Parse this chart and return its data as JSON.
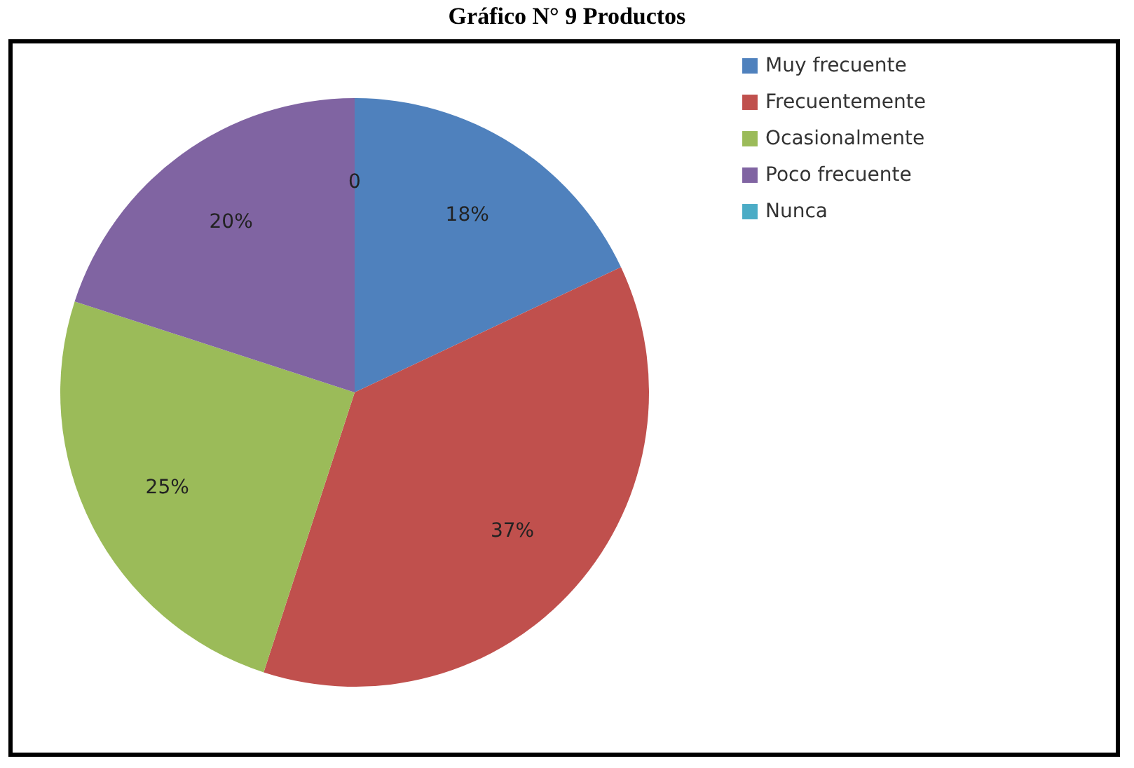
{
  "chart_data": {
    "type": "pie",
    "title": "Gráfico N° 9 Productos",
    "categories": [
      "Muy frecuente",
      "Frecuentemente",
      "Ocasionalmente",
      "Poco frecuente",
      "Nunca"
    ],
    "values": [
      18,
      37,
      25,
      20,
      0
    ],
    "colors": [
      "#4f81bd",
      "#c0504d",
      "#9bbb59",
      "#8064a2",
      "#4bacc6"
    ],
    "value_labels": [
      "18%",
      "37%",
      "25%",
      "20%",
      "0"
    ],
    "legend": "right"
  }
}
